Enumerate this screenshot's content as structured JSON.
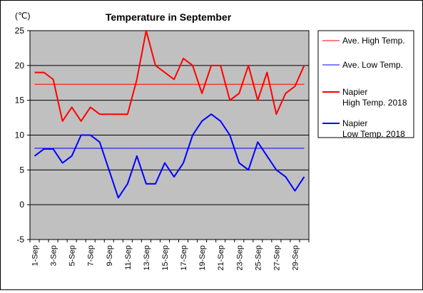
{
  "chart_data": {
    "type": "line",
    "title": "Temperature in September",
    "unit": "(℃)",
    "xlabel": "",
    "ylabel": "",
    "ylim": [
      -5,
      25
    ],
    "yticks": [
      25,
      20,
      15,
      10,
      5,
      0,
      -5
    ],
    "grid": true,
    "legend_position": "right",
    "plot_background": "#c0c0c0",
    "categories": [
      "1-Sep",
      "2-Sep",
      "3-Sep",
      "4-Sep",
      "5-Sep",
      "6-Sep",
      "7-Sep",
      "8-Sep",
      "9-Sep",
      "10-Sep",
      "11-Sep",
      "12-Sep",
      "13-Sep",
      "14-Sep",
      "15-Sep",
      "16-Sep",
      "17-Sep",
      "18-Sep",
      "19-Sep",
      "20-Sep",
      "21-Sep",
      "22-Sep",
      "23-Sep",
      "24-Sep",
      "25-Sep",
      "26-Sep",
      "27-Sep",
      "28-Sep",
      "29-Sep",
      "30-Sep"
    ],
    "tick_labels": [
      "1-Sep",
      "3-Sep",
      "5-Sep",
      "7-Sep",
      "9-Sep",
      "11-Sep",
      "13-Sep",
      "15-Sep",
      "17-Sep",
      "19-Sep",
      "21-Sep",
      "23-Sep",
      "25-Sep",
      "27-Sep",
      "29-Sep"
    ],
    "series": [
      {
        "name": "Ave. High Temp.",
        "color": "#ff0000",
        "style": "thin",
        "values": [
          17.3,
          17.3,
          17.3,
          17.3,
          17.3,
          17.3,
          17.3,
          17.3,
          17.3,
          17.3,
          17.3,
          17.3,
          17.3,
          17.3,
          17.3,
          17.3,
          17.3,
          17.3,
          17.3,
          17.3,
          17.3,
          17.3,
          17.3,
          17.3,
          17.3,
          17.3,
          17.3,
          17.3,
          17.3,
          17.3
        ]
      },
      {
        "name": "Ave. Low Temp.",
        "color": "#0000ff",
        "style": "thin",
        "values": [
          8.1,
          8.1,
          8.1,
          8.1,
          8.1,
          8.1,
          8.1,
          8.1,
          8.1,
          8.1,
          8.1,
          8.1,
          8.1,
          8.1,
          8.1,
          8.1,
          8.1,
          8.1,
          8.1,
          8.1,
          8.1,
          8.1,
          8.1,
          8.1,
          8.1,
          8.1,
          8.1,
          8.1,
          8.1,
          8.1
        ]
      },
      {
        "name": "Napier High Temp. 2018",
        "color": "#ff0000",
        "style": "thick",
        "values": [
          19,
          19,
          18,
          12,
          14,
          12,
          14,
          13,
          13,
          13,
          13,
          18,
          25,
          20,
          19,
          18,
          21,
          20,
          16,
          20,
          20,
          15,
          16,
          20,
          15,
          19,
          13,
          16,
          17,
          20
        ]
      },
      {
        "name": "Napier Low Temp. 2018",
        "color": "#0000ff",
        "style": "thick",
        "values": [
          7,
          8,
          8,
          6,
          7,
          10,
          10,
          9,
          5,
          1,
          3,
          7,
          3,
          3,
          6,
          4,
          6,
          10,
          12,
          13,
          12,
          10,
          6,
          5,
          9,
          7,
          5,
          4,
          2,
          4
        ]
      }
    ],
    "legend": [
      {
        "line1": "Ave. High Temp.",
        "line2": "",
        "color": "#ff0000",
        "style": "thin"
      },
      {
        "line1": "Ave. Low Temp.",
        "line2": "",
        "color": "#0000ff",
        "style": "thin"
      },
      {
        "line1": "Napier",
        "line2": "High Temp. 2018",
        "color": "#ff0000",
        "style": "thick"
      },
      {
        "line1": "Napier",
        "line2": "Low Temp. 2018",
        "color": "#0000ff",
        "style": "thick"
      }
    ]
  }
}
